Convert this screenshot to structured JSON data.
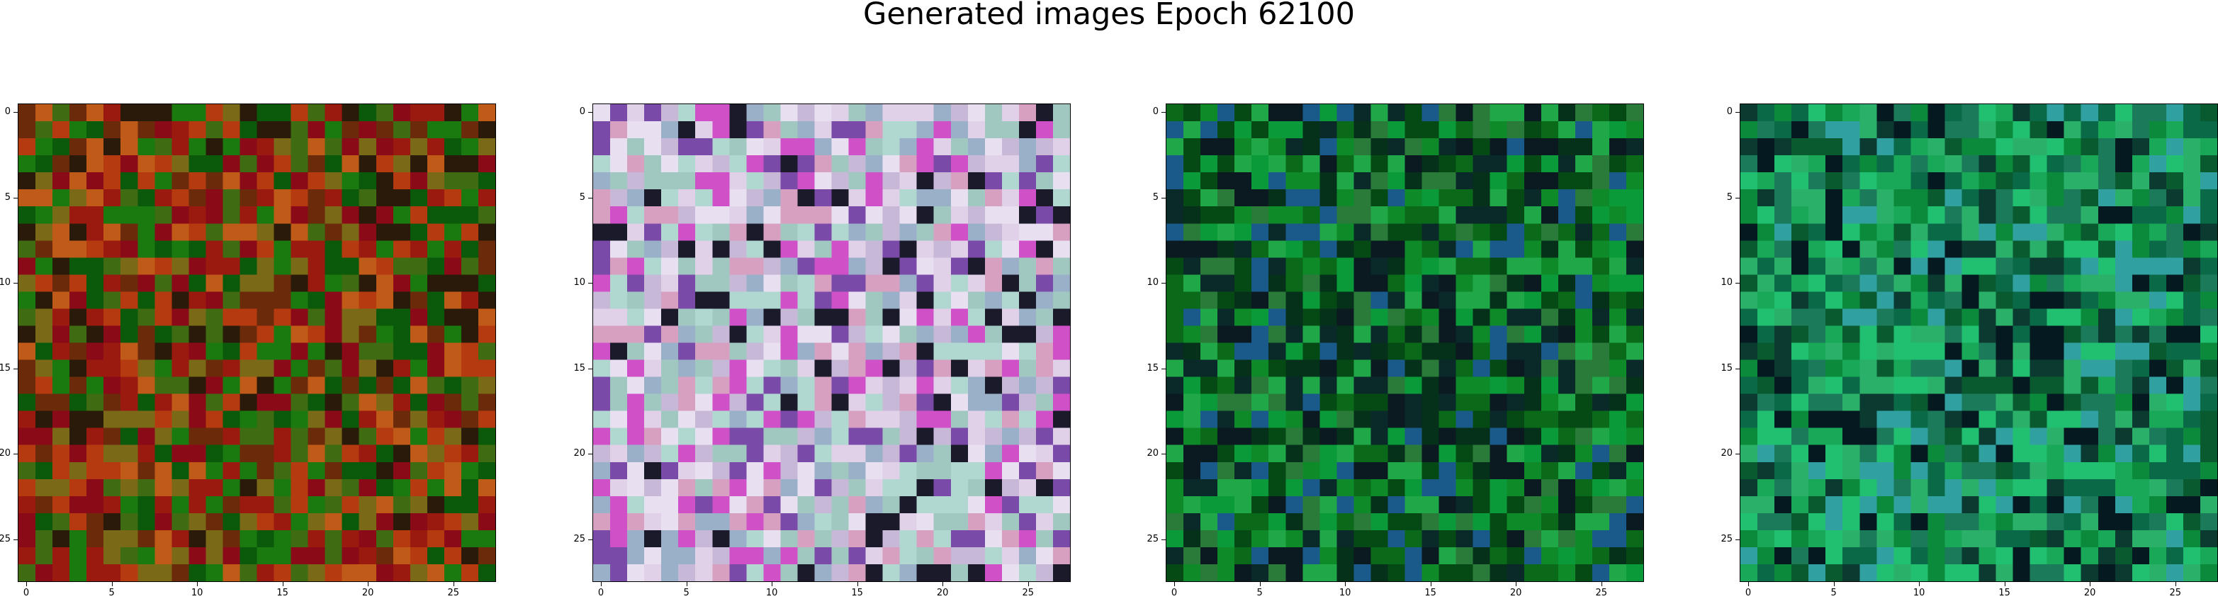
{
  "figure": {
    "title": "Generated images Epoch 62100"
  },
  "chart_data": [
    {
      "type": "heatmap",
      "title": "",
      "xlabel": "",
      "ylabel": "",
      "xlim": [
        -0.5,
        27.5
      ],
      "ylim": [
        27.5,
        -0.5
      ],
      "xticks": [
        "0",
        "5",
        "10",
        "15",
        "20",
        "25"
      ],
      "yticks": [
        "0",
        "5",
        "10",
        "15",
        "20",
        "25"
      ],
      "palette": [
        "#0b5a0b",
        "#1a7a10",
        "#3f6b12",
        "#6b2a0a",
        "#9a1a10",
        "#b63a10",
        "#7a6a18",
        "#2a1a0a",
        "#8a0a18",
        "#c05a18"
      ]
    },
    {
      "type": "heatmap",
      "title": "",
      "xlabel": "",
      "ylabel": "",
      "xlim": [
        -0.5,
        27.5
      ],
      "ylim": [
        27.5,
        -0.5
      ],
      "xticks": [
        "0",
        "5",
        "10",
        "15",
        "20",
        "25"
      ],
      "yticks": [
        "0",
        "5",
        "10",
        "15",
        "20",
        "25"
      ],
      "palette": [
        "#c8b8d8",
        "#e0d0e8",
        "#9ab0c8",
        "#d8a0c0",
        "#a0c8c0",
        "#7a4aa8",
        "#e8e0f0",
        "#1a1a2a",
        "#d050c8",
        "#b0d8d0"
      ]
    },
    {
      "type": "heatmap",
      "title": "",
      "xlabel": "",
      "ylabel": "",
      "xlim": [
        -0.5,
        27.5
      ],
      "ylim": [
        27.5,
        -0.5
      ],
      "xticks": [
        "0",
        "5",
        "10",
        "15",
        "20",
        "25"
      ],
      "yticks": [
        "0",
        "5",
        "10",
        "15",
        "20",
        "25"
      ],
      "palette": [
        "#0a6a1a",
        "#0f8a28",
        "#054a14",
        "#0a9a3a",
        "#20a848",
        "#05301a",
        "#0a2a2a",
        "#1a5a8a",
        "#2a7a3a",
        "#0a1a20"
      ]
    },
    {
      "type": "heatmap",
      "title": "",
      "xlabel": "",
      "ylabel": "",
      "xlim": [
        -0.5,
        27.5
      ],
      "ylim": [
        27.5,
        -0.5
      ],
      "xticks": [
        "0",
        "5",
        "10",
        "15",
        "20",
        "25"
      ],
      "yticks": [
        "0",
        "5",
        "10",
        "15",
        "20",
        "25"
      ],
      "palette": [
        "#0a8a3a",
        "#18a858",
        "#0a5a30",
        "#20c070",
        "#0a3a30",
        "#1a7a5a",
        "#30a0a0",
        "#051a20",
        "#0a6a48",
        "#2ab068"
      ]
    }
  ]
}
